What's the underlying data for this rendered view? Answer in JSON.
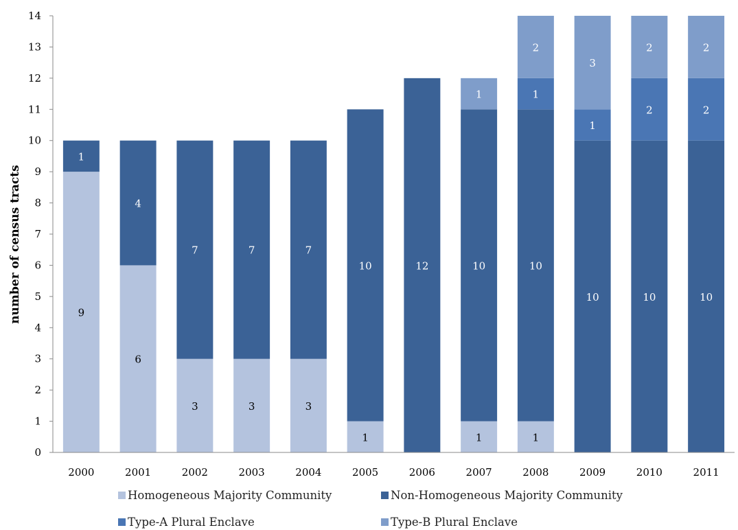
{
  "chart_data": {
    "type": "bar",
    "stacked": true,
    "title": "",
    "xlabel": "",
    "ylabel": "number of census tracts",
    "ylim": [
      0,
      14
    ],
    "yticks": [
      0,
      1,
      2,
      3,
      4,
      5,
      6,
      7,
      8,
      9,
      10,
      11,
      12,
      13,
      14
    ],
    "grid": false,
    "legend_position": "bottom",
    "categories": [
      "2000",
      "2001",
      "2002",
      "2003",
      "2004",
      "2005",
      "2006",
      "2007",
      "2008",
      "2009",
      "2010",
      "2011"
    ],
    "series": [
      {
        "name": "Homogeneous Majority Community",
        "color": "#b4c3de",
        "label_color": "#000000",
        "values": [
          9,
          6,
          3,
          3,
          3,
          1,
          0,
          1,
          1,
          0,
          0,
          0
        ]
      },
      {
        "name": "Non-Homogeneous Majority Community",
        "color": "#3b6296",
        "label_color": "#ffffff",
        "values": [
          1,
          4,
          7,
          7,
          7,
          10,
          12,
          10,
          10,
          10,
          10,
          10
        ]
      },
      {
        "name": "Type-A Plural Enclave",
        "color": "#4a76b4",
        "label_color": "#ffffff",
        "values": [
          0,
          0,
          0,
          0,
          0,
          0,
          0,
          0,
          1,
          1,
          2,
          2
        ]
      },
      {
        "name": "Type-B Plural Enclave",
        "color": "#7f9dca",
        "label_color": "#ffffff",
        "values": [
          0,
          0,
          0,
          0,
          0,
          0,
          0,
          1,
          2,
          3,
          2,
          2
        ]
      }
    ]
  }
}
